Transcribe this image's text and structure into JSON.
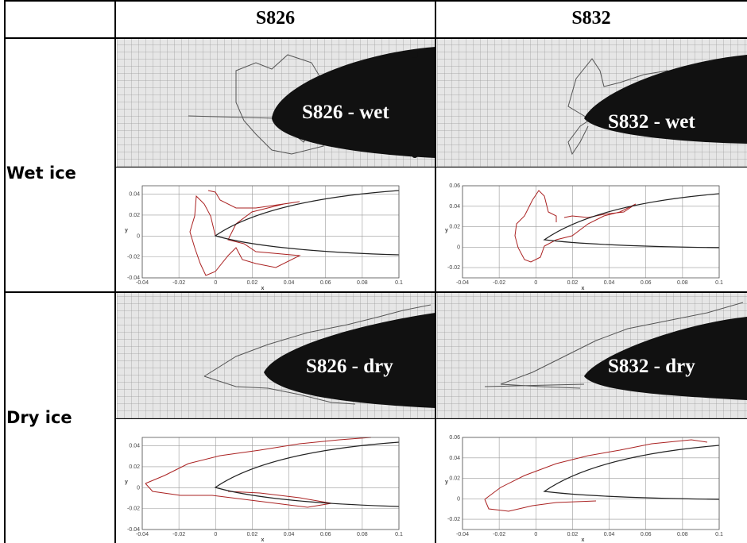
{
  "header": {
    "columns": [
      "S826",
      "S832"
    ]
  },
  "rows": [
    {
      "label": "Wet ice",
      "photos": [
        "S826 - wet",
        "S832 - wet"
      ],
      "plots": [
        {
          "xlabel": "x",
          "ylabel": "y",
          "xlim": [
            -0.04,
            0.1
          ],
          "ylim": [
            -0.04,
            0.048
          ],
          "xticks": [
            -0.04,
            -0.02,
            0,
            0.02,
            0.04,
            0.06,
            0.08,
            0.1
          ],
          "yticks": [
            -0.04,
            -0.02,
            0,
            0.02,
            0.04
          ]
        },
        {
          "xlabel": "x",
          "ylabel": "y",
          "xlim": [
            -0.04,
            0.1
          ],
          "ylim": [
            -0.03,
            0.06
          ],
          "xticks": [
            -0.04,
            -0.02,
            0,
            0.02,
            0.04,
            0.06,
            0.08,
            0.1
          ],
          "yticks": [
            -0.02,
            0,
            0.02,
            0.04,
            0.06
          ]
        }
      ]
    },
    {
      "label": "Dry ice",
      "photos": [
        "S826 - dry",
        "S832 - dry"
      ],
      "plots": [
        {
          "xlabel": "x",
          "ylabel": "y",
          "xlim": [
            -0.04,
            0.1
          ],
          "ylim": [
            -0.04,
            0.048
          ],
          "xticks": [
            -0.04,
            -0.02,
            0,
            0.02,
            0.04,
            0.06,
            0.08,
            0.1
          ],
          "yticks": [
            -0.04,
            -0.02,
            0,
            0.02,
            0.04
          ]
        },
        {
          "xlabel": "x",
          "ylabel": "y",
          "xlim": [
            -0.04,
            0.1
          ],
          "ylim": [
            -0.03,
            0.06
          ],
          "xticks": [
            -0.04,
            -0.02,
            0,
            0.02,
            0.04,
            0.06,
            0.08,
            0.1
          ],
          "yticks": [
            -0.02,
            0,
            0.02,
            0.04,
            0.06
          ]
        }
      ]
    }
  ]
}
